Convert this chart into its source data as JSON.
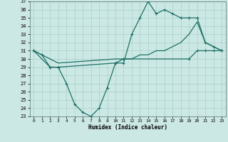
{
  "xlabel": "Humidex (Indice chaleur)",
  "xlim": [
    -0.5,
    23.5
  ],
  "ylim": [
    23,
    37
  ],
  "yticks": [
    23,
    24,
    25,
    26,
    27,
    28,
    29,
    30,
    31,
    32,
    33,
    34,
    35,
    36,
    37
  ],
  "xticks": [
    0,
    1,
    2,
    3,
    4,
    5,
    6,
    7,
    8,
    9,
    10,
    11,
    12,
    13,
    14,
    15,
    16,
    17,
    18,
    19,
    20,
    21,
    22,
    23
  ],
  "bg_color": "#cce8e4",
  "line_color": "#1e7068",
  "grid_color": "#a8cfc8",
  "line1_x": [
    0,
    1,
    2,
    3,
    10,
    11,
    12,
    13,
    14,
    15,
    16,
    17,
    18,
    19,
    20,
    21,
    22,
    23
  ],
  "line1_y": [
    31,
    30.5,
    29,
    29,
    29.5,
    29.5,
    33,
    35,
    37,
    35.5,
    36,
    35.5,
    35,
    35,
    35,
    32,
    31.5,
    31
  ],
  "line2_x": [
    0,
    2,
    3,
    10,
    11,
    12,
    13,
    14,
    15,
    16,
    17,
    18,
    19,
    20,
    21,
    22,
    23
  ],
  "line2_y": [
    31,
    30,
    29.5,
    30,
    30,
    30,
    30.5,
    30.5,
    31,
    31,
    31.5,
    32,
    33,
    34.5,
    32,
    31.5,
    31
  ],
  "line3_x": [
    0,
    2,
    3,
    4,
    5,
    6,
    7,
    8,
    9,
    10,
    11,
    19,
    20,
    21,
    22,
    23
  ],
  "line3_y": [
    31,
    29,
    29,
    27,
    24.5,
    23.5,
    23,
    24,
    26.5,
    29.5,
    30,
    30,
    31,
    31,
    31,
    31
  ]
}
